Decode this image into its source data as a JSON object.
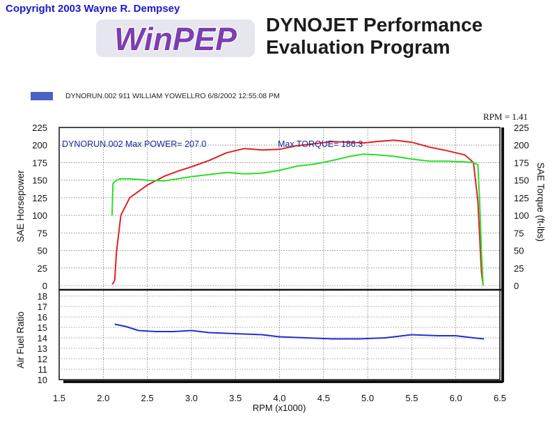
{
  "copyright": "Copyright 2003 Wayne R. Dempsey",
  "logo_text": "WinPEP",
  "subtitle_line1": "DYNOJET Performance",
  "subtitle_line2": "Evaluation Program",
  "run_header": "DYNORUN.002   911 WILLIAM YOWELLRO  6/8/2002 12:55:08 PM",
  "rpm_readout": "RPM = 1.41",
  "colors": {
    "power": "#e02020",
    "torque": "#28e028",
    "afr": "#2030d0",
    "legend_swatch": "#4a62c4"
  },
  "chart_data": [
    {
      "type": "line",
      "annotation": "DYNORUN.002  Max POWER= 207.0",
      "annotation2": "Max TORQUE= 186.3",
      "xlabel": "RPM (x1000)",
      "ylabel": "SAE Horsepower",
      "ylabel_right": "SAE Torque (ft-lbs)",
      "xlim": [
        1.5,
        6.5
      ],
      "ylim": [
        0,
        225
      ],
      "x_ticks": [
        "1.5",
        "2.0",
        "2.5",
        "3.0",
        "3.5",
        "4.0",
        "4.5",
        "5.0",
        "5.5",
        "6.0",
        "6.5"
      ],
      "y_ticks": [
        "0",
        "25",
        "50",
        "75",
        "100",
        "125",
        "150",
        "175",
        "200",
        "225"
      ],
      "y_ticks_right": [
        "0",
        "25",
        "50",
        "75",
        "100",
        "125",
        "150",
        "175",
        "200",
        "225"
      ],
      "grid": true,
      "series": [
        {
          "key": "power",
          "x": [
            2.1,
            2.11,
            2.13,
            2.15,
            2.2,
            2.3,
            2.5,
            2.7,
            2.85,
            3.0,
            3.2,
            3.4,
            3.6,
            3.8,
            4.0,
            4.2,
            4.4,
            4.6,
            4.8,
            4.95,
            5.1,
            5.3,
            5.5,
            5.7,
            5.9,
            6.1,
            6.2,
            6.25,
            6.27,
            6.29,
            6.31
          ],
          "y": [
            2,
            3,
            8,
            48,
            100,
            125,
            143,
            156,
            163,
            169,
            178,
            189,
            195,
            193,
            194,
            199,
            202,
            205,
            204,
            203,
            205,
            207,
            204,
            197,
            192,
            186,
            175,
            120,
            70,
            20,
            0
          ]
        },
        {
          "key": "torque",
          "x": [
            2.1,
            2.11,
            2.13,
            2.15,
            2.2,
            2.3,
            2.5,
            2.7,
            2.85,
            3.0,
            3.2,
            3.4,
            3.6,
            3.8,
            4.0,
            4.2,
            4.4,
            4.6,
            4.8,
            4.95,
            5.1,
            5.3,
            5.5,
            5.7,
            5.9,
            6.1,
            6.2,
            6.25,
            6.27,
            6.29,
            6.31
          ],
          "y": [
            100,
            145,
            148,
            150,
            152,
            152,
            150,
            149,
            152,
            155,
            158,
            161,
            159,
            160,
            164,
            170,
            173,
            178,
            184,
            187,
            186,
            184,
            180,
            177,
            177,
            176,
            175,
            172,
            120,
            50,
            0
          ]
        }
      ]
    },
    {
      "type": "line",
      "ylabel": "Air Fuel Ratio",
      "xlim": [
        1.5,
        6.5
      ],
      "ylim": [
        10,
        18
      ],
      "y_ticks": [
        "10",
        "11",
        "12",
        "13",
        "14",
        "15",
        "16",
        "17",
        "18"
      ],
      "grid": true,
      "series": [
        {
          "key": "afr",
          "x": [
            2.13,
            2.25,
            2.4,
            2.6,
            2.8,
            3.0,
            3.2,
            3.5,
            3.8,
            4.0,
            4.3,
            4.6,
            4.9,
            5.2,
            5.5,
            5.8,
            6.0,
            6.2,
            6.32
          ],
          "y": [
            15.3,
            15.1,
            14.7,
            14.6,
            14.6,
            14.7,
            14.5,
            14.4,
            14.3,
            14.1,
            14.0,
            13.9,
            13.9,
            14.0,
            14.3,
            14.2,
            14.2,
            14.0,
            13.9
          ]
        }
      ]
    }
  ]
}
